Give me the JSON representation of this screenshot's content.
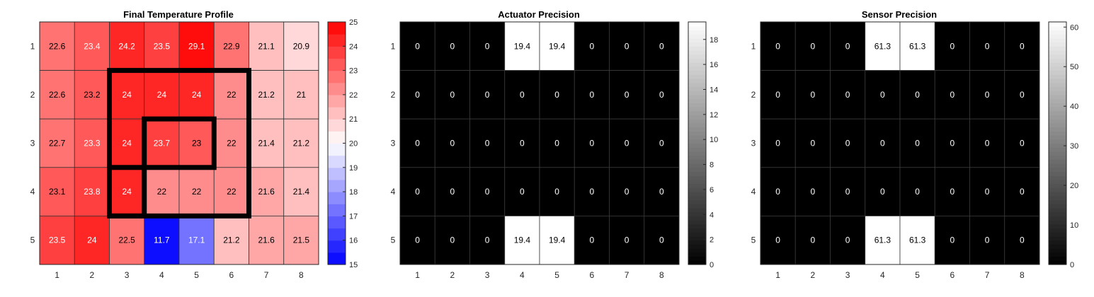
{
  "chart_data": [
    {
      "type": "heatmap",
      "title": "Final Temperature Profile",
      "colormap": "blue-white-red",
      "x": [
        1,
        2,
        3,
        4,
        5,
        6,
        7,
        8
      ],
      "y": [
        1,
        2,
        3,
        4,
        5
      ],
      "values": [
        [
          22.6,
          23.4,
          24.2,
          23.5,
          29.1,
          22.9,
          21.1,
          20.9
        ],
        [
          22.6,
          23.2,
          24,
          24,
          24,
          22,
          21.2,
          21
        ],
        [
          22.7,
          23.3,
          24,
          23.7,
          23,
          22,
          21.4,
          21.2
        ],
        [
          23.1,
          23.8,
          24,
          22,
          22,
          22,
          21.6,
          21.4
        ],
        [
          23.5,
          24,
          22.5,
          11.7,
          17.1,
          21.2,
          21.6,
          21.5
        ]
      ],
      "clim": [
        15,
        25
      ],
      "colorbar_ticks": [
        15,
        16,
        17,
        18,
        19,
        20,
        21,
        22,
        23,
        24,
        25
      ],
      "overlay_rectangles": [
        {
          "x": [
            2.5,
            6.5
          ],
          "y": [
            1.5,
            4.5
          ]
        },
        {
          "x": [
            3.5,
            5.5
          ],
          "y": [
            2.5,
            3.5
          ]
        },
        {
          "x": [
            2.5,
            3.5
          ],
          "y": [
            3.5,
            4.5
          ]
        }
      ]
    },
    {
      "type": "heatmap",
      "title": "Actuator Precision",
      "colormap": "gray",
      "x": [
        1,
        2,
        3,
        4,
        5,
        6,
        7,
        8
      ],
      "y": [
        1,
        2,
        3,
        4,
        5
      ],
      "values": [
        [
          0,
          0,
          0,
          19.4,
          19.4,
          0,
          0,
          0
        ],
        [
          0,
          0,
          0,
          0,
          0,
          0,
          0,
          0
        ],
        [
          0,
          0,
          0,
          0,
          0,
          0,
          0,
          0
        ],
        [
          0,
          0,
          0,
          0,
          0,
          0,
          0,
          0
        ],
        [
          0,
          0,
          0,
          19.4,
          19.4,
          0,
          0,
          0
        ]
      ],
      "clim": [
        0,
        19.4
      ],
      "colorbar_ticks": [
        0,
        2,
        4,
        6,
        8,
        10,
        12,
        14,
        16,
        18
      ]
    },
    {
      "type": "heatmap",
      "title": "Sensor Precision",
      "colormap": "gray",
      "x": [
        1,
        2,
        3,
        4,
        5,
        6,
        7,
        8
      ],
      "y": [
        1,
        2,
        3,
        4,
        5
      ],
      "values": [
        [
          0,
          0,
          0,
          61.3,
          61.3,
          0,
          0,
          0
        ],
        [
          0,
          0,
          0,
          0,
          0,
          0,
          0,
          0
        ],
        [
          0,
          0,
          0,
          0,
          0,
          0,
          0,
          0
        ],
        [
          0,
          0,
          0,
          0,
          0,
          0,
          0,
          0
        ],
        [
          0,
          0,
          0,
          61.3,
          61.3,
          0,
          0,
          0
        ]
      ],
      "clim": [
        0,
        61.3
      ],
      "colorbar_ticks": [
        0,
        10,
        20,
        30,
        40,
        50,
        60
      ]
    }
  ]
}
